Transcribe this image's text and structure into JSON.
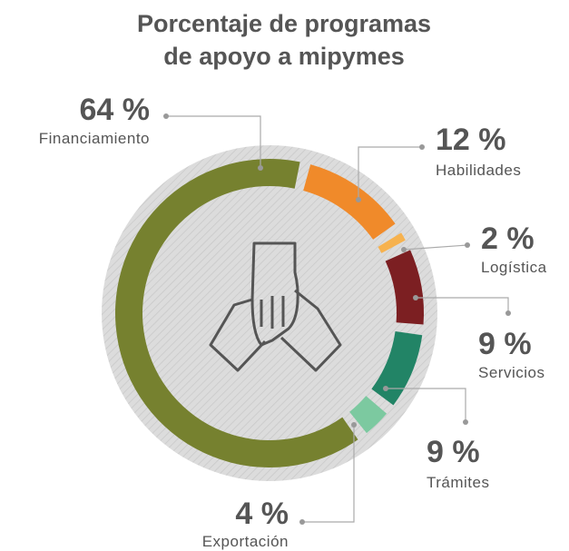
{
  "chart_data": {
    "type": "pie",
    "title": "Porcentaje de programas de apoyo a mipymes",
    "categories": [
      "Financiamiento",
      "Habilidades",
      "Logística",
      "Servicios",
      "Trámites",
      "Exportación"
    ],
    "values": [
      64,
      12,
      2,
      9,
      9,
      4
    ],
    "value_labels": [
      "64 %",
      "12 %",
      "2 %",
      "9 %",
      "9 %",
      "4 %"
    ],
    "colors": [
      "#76812f",
      "#f08a2a",
      "#f6b24f",
      "#7c1f22",
      "#228466",
      "#7cc9a0"
    ]
  }
}
